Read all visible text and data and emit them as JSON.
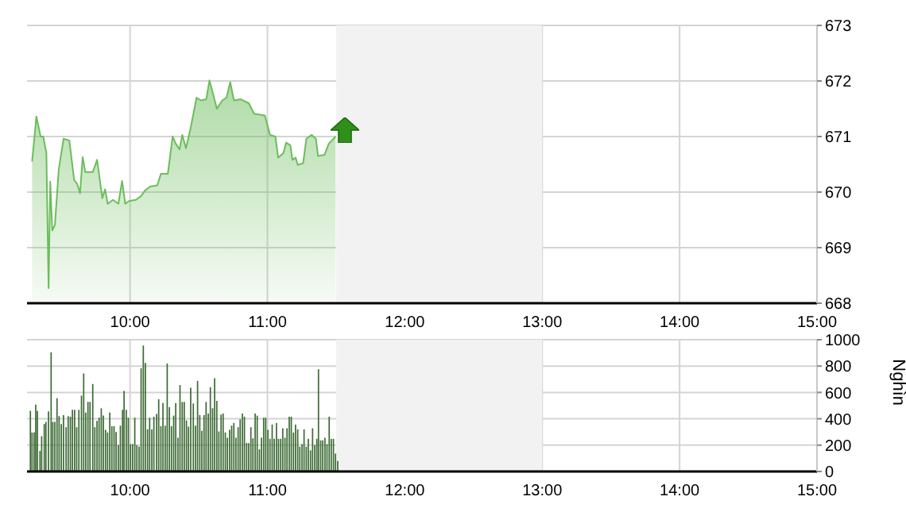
{
  "chart_data": [
    {
      "type": "area",
      "color": "#6cbd5c",
      "x": [
        9.287,
        9.318,
        9.349,
        9.368,
        9.391,
        9.407,
        9.419,
        9.434,
        9.453,
        9.481,
        9.516,
        9.558,
        9.593,
        9.616,
        9.636,
        9.655,
        9.674,
        9.729,
        9.76,
        9.798,
        9.818,
        9.837,
        9.876,
        9.915,
        9.942,
        9.965,
        9.992,
        10.043,
        10.081,
        10.109,
        10.147,
        10.198,
        10.225,
        10.275,
        10.31,
        10.333,
        10.36,
        10.38,
        10.407,
        10.438,
        10.484,
        10.516,
        10.554,
        10.578,
        10.605,
        10.632,
        10.671,
        10.702,
        10.729,
        10.756,
        10.806,
        10.864,
        10.903,
        10.981,
        11.019,
        11.058,
        11.078,
        11.116,
        11.136,
        11.167,
        11.182,
        11.205,
        11.221,
        11.26,
        11.283,
        11.322,
        11.353,
        11.368,
        11.415,
        11.446,
        11.496
      ],
      "values": [
        670.55,
        671.36,
        671.0,
        671.0,
        670.7,
        668.27,
        670.19,
        669.31,
        669.41,
        670.41,
        670.96,
        670.93,
        670.22,
        670.14,
        669.98,
        670.63,
        670.36,
        670.36,
        670.58,
        669.89,
        670.05,
        669.79,
        669.86,
        669.79,
        670.2,
        669.79,
        669.84,
        669.86,
        669.93,
        670.03,
        670.1,
        670.12,
        670.33,
        670.33,
        671.0,
        670.87,
        670.77,
        671.03,
        670.79,
        671.12,
        671.7,
        671.65,
        671.67,
        672.01,
        671.76,
        671.5,
        671.65,
        671.7,
        671.98,
        671.65,
        671.67,
        671.6,
        671.41,
        671.38,
        671.03,
        671.0,
        670.62,
        670.7,
        670.89,
        670.84,
        670.58,
        670.62,
        670.49,
        670.52,
        670.96,
        671.03,
        670.96,
        670.65,
        670.67,
        670.87,
        671.0
      ],
      "xlim": [
        9.25,
        15
      ],
      "xticks": [
        {
          "value": 10,
          "label": "10:00"
        },
        {
          "value": 11,
          "label": "11:00"
        },
        {
          "value": 12,
          "label": "12:00"
        },
        {
          "value": 13,
          "label": "13:00"
        },
        {
          "value": 14,
          "label": "14:00"
        },
        {
          "value": 15,
          "label": "15:00"
        }
      ],
      "ylim": [
        668,
        673
      ],
      "yticks": [
        668,
        669,
        670,
        671,
        672,
        673
      ],
      "grid": true,
      "bands": [
        {
          "axis": "x",
          "from": 11.5,
          "to": 13,
          "color": "#f2f2f2"
        }
      ]
    },
    {
      "type": "bar",
      "color": "#3d6b35",
      "ylabel": "Nghìn",
      "x": [
        9.275,
        9.287,
        9.302,
        9.314,
        9.326,
        9.345,
        9.357,
        9.376,
        9.388,
        9.407,
        9.426,
        9.438,
        9.453,
        9.469,
        9.484,
        9.5,
        9.516,
        9.535,
        9.55,
        9.566,
        9.581,
        9.597,
        9.612,
        9.628,
        9.647,
        9.663,
        9.678,
        9.694,
        9.709,
        9.729,
        9.744,
        9.76,
        9.775,
        9.791,
        9.806,
        9.822,
        9.837,
        9.853,
        9.868,
        9.884,
        9.899,
        9.915,
        9.93,
        9.946,
        9.957,
        9.973,
        9.988,
        10.004,
        10.019,
        10.035,
        10.05,
        10.066,
        10.081,
        10.097,
        10.112,
        10.128,
        10.143,
        10.159,
        10.174,
        10.194,
        10.209,
        10.225,
        10.24,
        10.256,
        10.271,
        10.287,
        10.302,
        10.318,
        10.333,
        10.349,
        10.364,
        10.38,
        10.395,
        10.411,
        10.426,
        10.442,
        10.461,
        10.477,
        10.492,
        10.508,
        10.523,
        10.539,
        10.554,
        10.57,
        10.585,
        10.601,
        10.616,
        10.632,
        10.647,
        10.663,
        10.678,
        10.694,
        10.709,
        10.725,
        10.74,
        10.756,
        10.771,
        10.787,
        10.802,
        10.818,
        10.833,
        10.849,
        10.864,
        10.88,
        10.895,
        10.911,
        10.926,
        10.942,
        10.957,
        10.973,
        10.988,
        11.004,
        11.019,
        11.035,
        11.05,
        11.066,
        11.081,
        11.097,
        11.112,
        11.128,
        11.143,
        11.159,
        11.174,
        11.19,
        11.205,
        11.221,
        11.236,
        11.252,
        11.267,
        11.283,
        11.298,
        11.314,
        11.329,
        11.345,
        11.36,
        11.372,
        11.388,
        11.403,
        11.419,
        11.434,
        11.45,
        11.465,
        11.481,
        11.496,
        11.512
      ],
      "values": [
        460,
        296,
        296,
        508,
        460,
        156,
        268,
        360,
        376,
        456,
        904,
        376,
        376,
        556,
        420,
        360,
        428,
        336,
        420,
        416,
        468,
        468,
        336,
        468,
        576,
        744,
        448,
        528,
        528,
        664,
        336,
        384,
        408,
        480,
        424,
        316,
        296,
        448,
        344,
        344,
        300,
        200,
        348,
        468,
        612,
        468,
        408,
        208,
        208,
        408,
        200,
        188,
        784,
        956,
        824,
        320,
        408,
        320,
        416,
        436,
        548,
        344,
        520,
        348,
        820,
        488,
        344,
        424,
        520,
        256,
        656,
        528,
        528,
        388,
        340,
        636,
        516,
        348,
        688,
        428,
        308,
        428,
        528,
        440,
        640,
        480,
        708,
        536,
        304,
        432,
        440,
        296,
        256,
        316,
        348,
        368,
        256,
        336,
        396,
        440,
        416,
        216,
        216,
        336,
        252,
        440,
        424,
        168,
        256,
        408,
        408,
        316,
        248,
        356,
        248,
        368,
        248,
        248,
        328,
        256,
        328,
        416,
        416,
        296,
        356,
        320,
        188,
        208,
        320,
        188,
        248,
        160,
        328,
        200,
        248,
        776,
        236,
        236,
        256,
        208,
        416,
        248,
        248,
        136,
        80
      ],
      "xlim": [
        9.25,
        15
      ],
      "xticks": [
        {
          "value": 10,
          "label": "10:00"
        },
        {
          "value": 11,
          "label": "11:00"
        },
        {
          "value": 12,
          "label": "12:00"
        },
        {
          "value": 13,
          "label": "13:00"
        },
        {
          "value": 14,
          "label": "14:00"
        },
        {
          "value": 15,
          "label": "15:00"
        }
      ],
      "ylim": [
        0,
        1000
      ],
      "yticks": [
        0,
        200,
        400,
        600,
        800,
        1000
      ],
      "grid": true,
      "bands": [
        {
          "axis": "x",
          "from": 11.5,
          "to": 13,
          "color": "#f2f2f2"
        }
      ]
    }
  ]
}
